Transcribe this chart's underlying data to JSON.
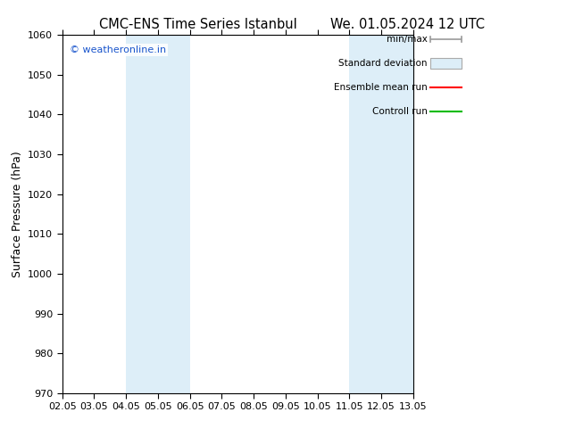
{
  "title_left": "CMC-ENS Time Series Istanbul",
  "title_right": "We. 01.05.2024 12 UTC",
  "ylabel": "Surface Pressure (hPa)",
  "ylim": [
    970,
    1060
  ],
  "yticks": [
    970,
    980,
    990,
    1000,
    1010,
    1020,
    1030,
    1040,
    1050,
    1060
  ],
  "xtick_labels": [
    "02.05",
    "03.05",
    "04.05",
    "05.05",
    "06.05",
    "07.05",
    "08.05",
    "09.05",
    "10.05",
    "11.05",
    "12.05",
    "13.05"
  ],
  "xtick_positions": [
    0,
    1,
    2,
    3,
    4,
    5,
    6,
    7,
    8,
    9,
    10,
    11
  ],
  "shaded_bands": [
    {
      "xmin": 2,
      "xmax": 4,
      "color": "#ddeef8"
    },
    {
      "xmin": 9,
      "xmax": 11,
      "color": "#ddeef8"
    }
  ],
  "watermark_text": "© weatheronline.in",
  "watermark_color": "#1a55cc",
  "legend_labels": [
    "min/max",
    "Standard deviation",
    "Ensemble mean run",
    "Controll run"
  ],
  "legend_colors_line": [
    "#999999",
    "#cccccc",
    "#ff0000",
    "#00bb00"
  ],
  "bg_color": "#ffffff",
  "plot_bg_color": "#ffffff",
  "title_fontsize": 10.5,
  "tick_fontsize": 8,
  "ylabel_fontsize": 9
}
